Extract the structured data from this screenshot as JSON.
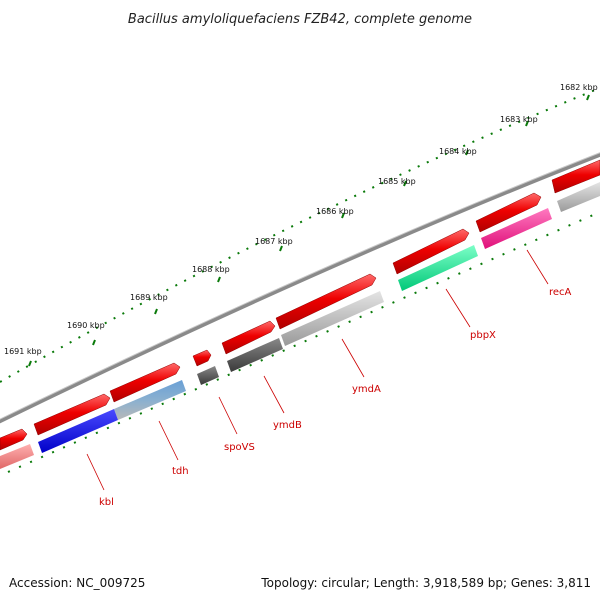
{
  "title": "Bacillus amyloliquefaciens FZB42, complete genome",
  "footer": {
    "accession": "Accession: NC_009725",
    "summary": "Topology: circular; Length: 3,918,589 bp; Genes: 3,811"
  },
  "ticks": [
    "1682 kbp",
    "1683 kbp",
    "1684 kbp",
    "1685 kbp",
    "1686 kbp",
    "1687 kbp",
    "1688 kbp",
    "1689 kbp",
    "1690 kbp",
    "1691 kbp"
  ],
  "genes": [
    {
      "name": "recA",
      "cds_color": "#ff1493"
    },
    {
      "name": "pbpX",
      "cds_color": "#00e08a"
    },
    {
      "name": "ymdA",
      "cds_color": "#b8b8b8"
    },
    {
      "name": "ymdB",
      "cds_color": "#555555"
    },
    {
      "name": "spoVS",
      "cds_color": "#555555"
    },
    {
      "name": "tdh",
      "cds_color": "#3a7fbf"
    },
    {
      "name": "kbl",
      "cds_color": "#0000ee"
    }
  ],
  "colors": {
    "backbone": "#8a8a8a",
    "forward_gene": "#ee0000",
    "tick": "#0a7a0a",
    "label": "#cc0000"
  }
}
